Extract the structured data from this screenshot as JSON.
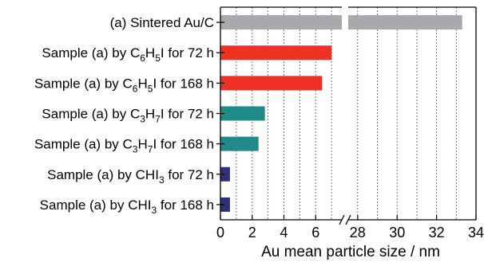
{
  "chart_data": {
    "type": "bar",
    "orientation": "horizontal",
    "title": "",
    "xlabel": "Au mean particle size / nm",
    "ylabel": "",
    "axis_break": true,
    "x_segments": [
      {
        "range": [
          0,
          7.9
        ],
        "ticks": [
          0,
          2,
          4,
          6
        ]
      },
      {
        "range": [
          27.4,
          34
        ],
        "ticks": [
          28,
          30,
          32,
          34
        ]
      }
    ],
    "grid": "vertical dashed",
    "categories": [
      {
        "parts": [
          {
            "t": "(a) Sintered Au/C"
          }
        ]
      },
      {
        "parts": [
          {
            "t": "Sample (a) by C"
          },
          {
            "t": "6",
            "sub": true
          },
          {
            "t": "H"
          },
          {
            "t": "5",
            "sub": true
          },
          {
            "t": "I for 72 h"
          }
        ]
      },
      {
        "parts": [
          {
            "t": "Sample (a) by C"
          },
          {
            "t": "6",
            "sub": true
          },
          {
            "t": "H"
          },
          {
            "t": "5",
            "sub": true
          },
          {
            "t": "I for 168 h"
          }
        ]
      },
      {
        "parts": [
          {
            "t": "Sample (a) by C"
          },
          {
            "t": "3",
            "sub": true
          },
          {
            "t": "H"
          },
          {
            "t": "7",
            "sub": true
          },
          {
            "t": "I for 72 h"
          }
        ]
      },
      {
        "parts": [
          {
            "t": "Sample (a) by C"
          },
          {
            "t": "3",
            "sub": true
          },
          {
            "t": "H"
          },
          {
            "t": "7",
            "sub": true
          },
          {
            "t": "I for 168 h"
          }
        ]
      },
      {
        "parts": [
          {
            "t": "Sample (a) by CHI"
          },
          {
            "t": "3",
            "sub": true
          },
          {
            "t": " for 72 h"
          }
        ]
      },
      {
        "parts": [
          {
            "t": "Sample (a) by CHI"
          },
          {
            "t": "3",
            "sub": true
          },
          {
            "t": " for 168 h"
          }
        ]
      }
    ],
    "values": [
      33.3,
      7.0,
      6.4,
      2.8,
      2.4,
      0.6,
      0.6
    ],
    "colors": [
      "#a7a9ac",
      "#ee3124",
      "#ee3124",
      "#1f8a88",
      "#1f8a88",
      "#2e3079",
      "#2e3079"
    ]
  }
}
